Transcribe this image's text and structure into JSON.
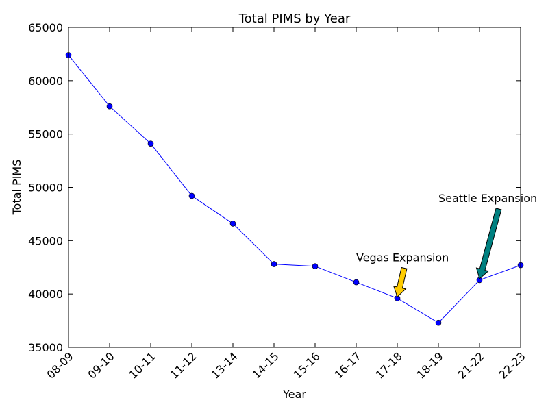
{
  "chart_data": {
    "type": "line",
    "title": "Total PIMS by Year",
    "xlabel": "Year",
    "ylabel": "Total PIMS",
    "categories": [
      "08-09",
      "09-10",
      "10-11",
      "11-12",
      "13-14",
      "14-15",
      "15-16",
      "16-17",
      "17-18",
      "18-19",
      "21-22",
      "22-23"
    ],
    "series": [
      {
        "values": [
          62400,
          57600,
          54100,
          49200,
          46600,
          42800,
          42600,
          41100,
          39600,
          37300,
          41300,
          42700
        ],
        "color": "#0000ff",
        "marker": "circle"
      }
    ],
    "ylim": [
      35000,
      65000
    ],
    "yticks": [
      35000,
      40000,
      45000,
      50000,
      55000,
      60000,
      65000
    ],
    "grid": false,
    "legend": "none",
    "annotations": [
      {
        "text": "Vegas Expansion",
        "target_category": "17-18",
        "target_value": 39600,
        "arrow_color": "#ffcc00"
      },
      {
        "text": "Seattle Expansion",
        "target_category": "21-22",
        "target_value": 41300,
        "arrow_color": "#008080"
      }
    ]
  }
}
